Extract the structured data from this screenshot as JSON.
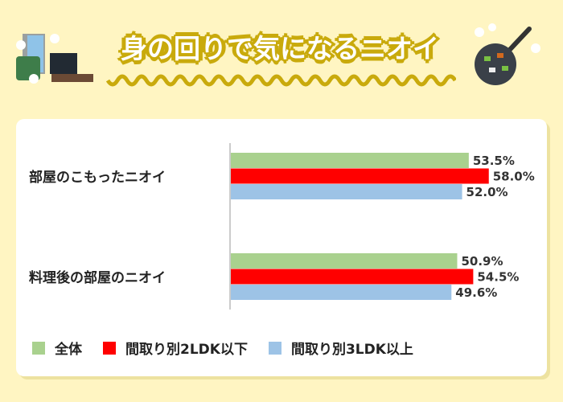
{
  "header": {
    "title": "身の回りで気になるニオイ"
  },
  "colors": {
    "series1": "#a9d18e",
    "series2": "#ff0000",
    "series3": "#9dc3e6"
  },
  "chart_data": {
    "type": "bar",
    "orientation": "horizontal",
    "title": "身の回りで気になるニオイ",
    "categories": [
      "部屋のこもったニオイ",
      "料理後の部屋のニオイ"
    ],
    "series": [
      {
        "name": "全体",
        "values": [
          53.5,
          50.9
        ],
        "labels": [
          "53.5%",
          "50.9%"
        ]
      },
      {
        "name": "間取り別2LDK以下",
        "values": [
          58.0,
          54.5
        ],
        "labels": [
          "58.0%",
          "54.5%"
        ]
      },
      {
        "name": "間取り別3LDK以上",
        "values": [
          52.0,
          49.6
        ],
        "labels": [
          "52.0%",
          "49.6%"
        ]
      }
    ],
    "xlim": [
      0,
      100
    ],
    "unit": "%",
    "legend": "bottom",
    "grid": false
  }
}
